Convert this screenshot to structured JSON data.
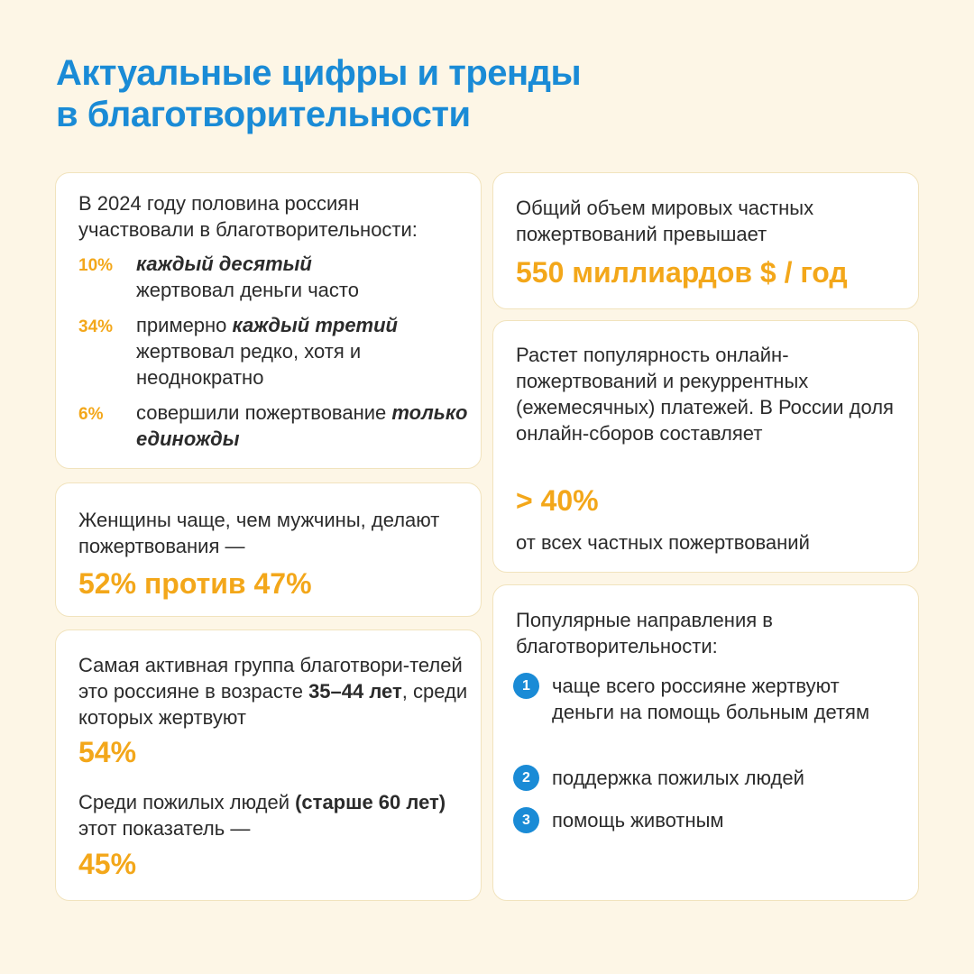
{
  "title": {
    "line1": "Актуальные цифры и тренды",
    "line2": "в благотворительности"
  },
  "card_participation": {
    "intro": "В 2024 году половина россиян участвовали в благотворительности:",
    "stats": [
      {
        "pct": "10%",
        "prefix": "",
        "emphasis": "каждый десятый",
        "suffix": " жертвовал деньги часто"
      },
      {
        "pct": "34%",
        "prefix": "примерно ",
        "emphasis": "каждый третий",
        "suffix": " жертвовал редко, хотя и неоднократно"
      },
      {
        "pct": "6%",
        "prefix": "совершили пожертвование ",
        "emphasis": "только единожды",
        "suffix": ""
      }
    ]
  },
  "card_gender": {
    "text": "Женщины чаще, чем мужчины, делают пожертвования —",
    "value": "52% против 47%"
  },
  "card_age": {
    "text1_a": "Самая активная группа благотвори-телей это россияне в возрасте ",
    "text1_bold": "35–44 лет",
    "text1_b": ", среди которых жертвуют",
    "value1": "54%",
    "text2_a": "Среди пожилых людей ",
    "text2_bold": "(старше 60 лет)",
    "text2_b": " этот показатель —",
    "value2": "45%"
  },
  "card_global": {
    "text": "Общий объем мировых частных пожертвований превышает",
    "value": "550 миллиардов $ / год"
  },
  "card_online": {
    "text": "Растет популярность онлайн-пожертвований и рекуррентных (ежемесячных) платежей. В России доля онлайн-сборов составляет",
    "value": "> 40%",
    "suffix": "от всех частных пожертвований"
  },
  "card_directions": {
    "text": "Популярные направления в благотворительности:",
    "items": [
      {
        "num": "1",
        "label": "чаще всего россияне жертвуют деньги на помощь больным детям"
      },
      {
        "num": "2",
        "label": "поддержка пожилых людей"
      },
      {
        "num": "3",
        "label": "помощь животным"
      }
    ]
  },
  "colors": {
    "background": "#fdf6e6",
    "title": "#1a8bd6",
    "accent": "#f3a71a",
    "text": "#2b2b2b",
    "card": "#ffffff",
    "badge": "#1a8bd6"
  }
}
